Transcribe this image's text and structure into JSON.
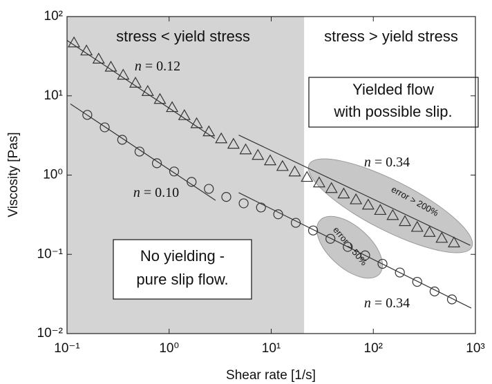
{
  "chart_data": {
    "type": "scatter",
    "log_x": true,
    "log_y": true,
    "grid": false,
    "x_label": "Shear rate [1/s]",
    "y_label": "Viscosity [Pas]",
    "xlim": [
      0.1,
      1000
    ],
    "ylim": [
      0.01,
      100
    ],
    "xticks": [
      {
        "value": 0.1,
        "label": "10⁻¹"
      },
      {
        "value": 1,
        "label": "10⁰"
      },
      {
        "value": 10,
        "label": "10¹"
      },
      {
        "value": 100,
        "label": "10²"
      },
      {
        "value": 1000,
        "label": "10³"
      }
    ],
    "yticks": [
      {
        "value": 0.01,
        "label": "10⁻²"
      },
      {
        "value": 0.1,
        "label": "10⁻¹"
      },
      {
        "value": 1,
        "label": "10⁰"
      },
      {
        "value": 10,
        "label": "10¹"
      },
      {
        "value": 100,
        "label": "10²"
      }
    ],
    "shaded_region": {
      "x": [
        0.1,
        21
      ],
      "color": "#d4d4d4"
    },
    "series": [
      {
        "marker": "triangle",
        "color": "#333333",
        "x": [
          0.117,
          0.155,
          0.204,
          0.269,
          0.355,
          0.468,
          0.617,
          0.813,
          1.07,
          1.41,
          1.86,
          2.45,
          3.24,
          4.27,
          5.62,
          7.41,
          9.77,
          12.9,
          17.0,
          22.4,
          29.5,
          38.9,
          51.3,
          67.6,
          89.1,
          117,
          155,
          204,
          269,
          355,
          468,
          617
        ],
        "values": [
          46.8,
          37.0,
          29.2,
          23.1,
          18.3,
          14.5,
          11.4,
          9.04,
          7.14,
          5.65,
          4.47,
          3.53,
          2.88,
          2.46,
          2.09,
          1.78,
          1.52,
          1.29,
          1.1,
          0.94,
          0.8,
          0.68,
          0.58,
          0.49,
          0.42,
          0.36,
          0.31,
          0.26,
          0.22,
          0.19,
          0.16,
          0.14
        ]
      },
      {
        "marker": "circle",
        "color": "#333333",
        "x": [
          0.158,
          0.234,
          0.347,
          0.513,
          0.759,
          1.12,
          1.66,
          2.45,
          3.63,
          5.37,
          7.94,
          11.7,
          17.4,
          25.7,
          38.0,
          56.2,
          83.2,
          123,
          182,
          269,
          398,
          589
        ],
        "values": [
          5.75,
          4.0,
          2.79,
          1.98,
          1.41,
          1.11,
          0.82,
          0.67,
          0.53,
          0.44,
          0.39,
          0.32,
          0.25,
          0.2,
          0.157,
          0.124,
          0.097,
          0.076,
          0.059,
          0.045,
          0.034,
          0.027
        ]
      }
    ],
    "fits": [
      {
        "x": [
          0.1,
          2.8
        ],
        "values": [
          50,
          2.9
        ]
      },
      {
        "x": [
          4.8,
          890
        ],
        "values": [
          3.2,
          0.13
        ]
      },
      {
        "x": [
          0.108,
          2.85
        ],
        "values": [
          7.9,
          0.48
        ]
      },
      {
        "x": [
          4.8,
          910
        ],
        "values": [
          0.6,
          0.021
        ]
      }
    ],
    "annotations": [
      "stress < yield stress",
      "stress > yield stress",
      "Yielded flow",
      "with possible slip.",
      "No yielding -",
      "pure slip flow.",
      "n = 0.12",
      "n = 0.34",
      "n = 0.10",
      "n = 0.34",
      "error > 200%",
      "error > 50%"
    ]
  }
}
